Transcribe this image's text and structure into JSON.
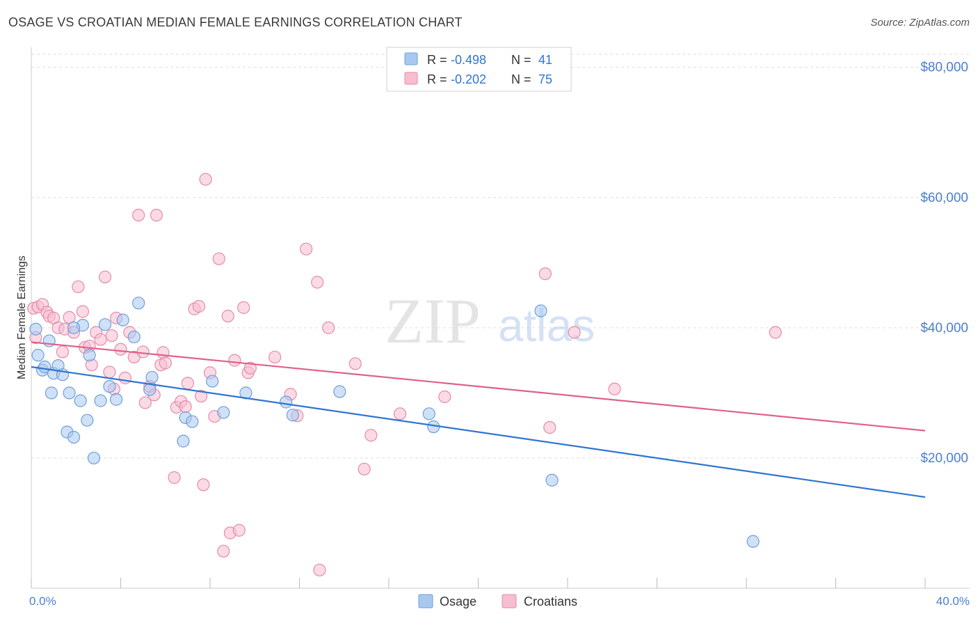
{
  "header": {
    "title": "OSAGE VS CROATIAN MEDIAN FEMALE EARNINGS CORRELATION CHART",
    "source": "Source: ZipAtlas.com"
  },
  "watermark": {
    "zip": "ZIP",
    "atlas": "atlas"
  },
  "colors": {
    "osage_fill": "#a9c8f0",
    "osage_stroke": "#6c9fdc",
    "osage_line": "#2f74d0",
    "croatian_fill": "#f6bed0",
    "croatian_stroke": "#e78aa8",
    "croatian_line": "#e0608a",
    "tick_label": "#4a7fcf",
    "grid": "#dddddd"
  },
  "legend": {
    "rows": [
      {
        "r_label": "R =",
        "r_value": "-0.498",
        "n_label": "N =",
        "n_value": "41"
      },
      {
        "r_label": "R =",
        "r_value": "-0.202",
        "n_label": "N =",
        "n_value": "75"
      }
    ]
  },
  "bottom_legend": {
    "osage": "Osage",
    "croatians": "Croatians"
  },
  "chart_data": {
    "type": "scatter",
    "title": "OSAGE VS CROATIAN MEDIAN FEMALE EARNINGS CORRELATION CHART",
    "xlabel": "",
    "ylabel": "Median Female Earnings",
    "xlim": [
      0,
      40
    ],
    "ylim": [
      0,
      82000
    ],
    "x_tick_labels": [
      "0.0%",
      "40.0%"
    ],
    "y_ticks": [
      20000,
      40000,
      60000,
      80000
    ],
    "y_tick_labels": [
      "$20,000",
      "$40,000",
      "$60,000",
      "$80,000"
    ],
    "grid": true,
    "series": [
      {
        "name": "Osage",
        "r": -0.498,
        "n": 41,
        "trend": {
          "x": [
            0,
            40
          ],
          "y": [
            34000,
            14000
          ]
        },
        "points": [
          [
            0.2,
            39800
          ],
          [
            0.3,
            35800
          ],
          [
            0.5,
            33500
          ],
          [
            0.6,
            34000
          ],
          [
            0.8,
            38000
          ],
          [
            0.9,
            30000
          ],
          [
            1.0,
            33000
          ],
          [
            1.2,
            34200
          ],
          [
            1.4,
            32800
          ],
          [
            1.6,
            24000
          ],
          [
            1.7,
            30000
          ],
          [
            1.9,
            23200
          ],
          [
            2.2,
            28800
          ],
          [
            2.3,
            40400
          ],
          [
            2.5,
            25800
          ],
          [
            2.6,
            35800
          ],
          [
            2.8,
            20000
          ],
          [
            3.1,
            28800
          ],
          [
            3.3,
            40500
          ],
          [
            3.5,
            31000
          ],
          [
            3.8,
            29000
          ],
          [
            4.1,
            41200
          ],
          [
            4.6,
            38600
          ],
          [
            4.8,
            43800
          ],
          [
            5.3,
            30500
          ],
          [
            5.4,
            32400
          ],
          [
            6.8,
            22600
          ],
          [
            6.9,
            26200
          ],
          [
            7.2,
            25600
          ],
          [
            8.1,
            31800
          ],
          [
            8.6,
            27000
          ],
          [
            9.6,
            30000
          ],
          [
            11.4,
            28600
          ],
          [
            11.7,
            26600
          ],
          [
            13.8,
            30200
          ],
          [
            17.8,
            26800
          ],
          [
            18.0,
            24800
          ],
          [
            22.8,
            42600
          ],
          [
            23.3,
            16600
          ],
          [
            32.3,
            7200
          ],
          [
            1.9,
            40000
          ]
        ]
      },
      {
        "name": "Croatians",
        "r": -0.202,
        "n": 75,
        "trend": {
          "x": [
            0,
            40
          ],
          "y": [
            37800,
            24200
          ]
        },
        "points": [
          [
            0.1,
            43000
          ],
          [
            0.2,
            38500
          ],
          [
            0.3,
            43200
          ],
          [
            0.5,
            43600
          ],
          [
            0.7,
            42400
          ],
          [
            0.8,
            41800
          ],
          [
            1.0,
            41500
          ],
          [
            1.2,
            40000
          ],
          [
            1.4,
            36300
          ],
          [
            1.5,
            39800
          ],
          [
            1.7,
            41600
          ],
          [
            1.9,
            39300
          ],
          [
            2.1,
            46300
          ],
          [
            2.3,
            42500
          ],
          [
            2.4,
            37000
          ],
          [
            2.6,
            37200
          ],
          [
            2.7,
            34300
          ],
          [
            2.9,
            39300
          ],
          [
            3.1,
            38200
          ],
          [
            3.3,
            47800
          ],
          [
            3.5,
            33200
          ],
          [
            3.6,
            38800
          ],
          [
            3.7,
            30600
          ],
          [
            3.8,
            41500
          ],
          [
            4.0,
            36700
          ],
          [
            4.2,
            32300
          ],
          [
            4.4,
            39300
          ],
          [
            4.6,
            35500
          ],
          [
            4.8,
            57300
          ],
          [
            5.0,
            36300
          ],
          [
            5.1,
            28500
          ],
          [
            5.3,
            31000
          ],
          [
            5.5,
            29700
          ],
          [
            5.6,
            57300
          ],
          [
            5.8,
            34300
          ],
          [
            5.9,
            36200
          ],
          [
            6.0,
            34600
          ],
          [
            6.4,
            17000
          ],
          [
            6.5,
            27800
          ],
          [
            6.7,
            28700
          ],
          [
            6.9,
            27900
          ],
          [
            7.0,
            31500
          ],
          [
            7.3,
            42900
          ],
          [
            7.5,
            43300
          ],
          [
            7.6,
            29500
          ],
          [
            7.7,
            15900
          ],
          [
            7.8,
            62800
          ],
          [
            8.0,
            33100
          ],
          [
            8.2,
            26400
          ],
          [
            8.4,
            50600
          ],
          [
            8.6,
            5700
          ],
          [
            8.8,
            41800
          ],
          [
            8.9,
            8500
          ],
          [
            9.1,
            35000
          ],
          [
            9.3,
            8900
          ],
          [
            9.5,
            43100
          ],
          [
            9.7,
            33100
          ],
          [
            9.8,
            33800
          ],
          [
            10.9,
            35500
          ],
          [
            11.6,
            29800
          ],
          [
            11.9,
            26500
          ],
          [
            12.3,
            52100
          ],
          [
            12.8,
            47000
          ],
          [
            12.9,
            2800
          ],
          [
            13.3,
            40000
          ],
          [
            14.5,
            34500
          ],
          [
            14.9,
            18300
          ],
          [
            15.2,
            23500
          ],
          [
            16.5,
            26800
          ],
          [
            18.5,
            29400
          ],
          [
            23.0,
            48300
          ],
          [
            23.2,
            24700
          ],
          [
            24.3,
            39300
          ],
          [
            26.1,
            30600
          ],
          [
            33.3,
            39300
          ]
        ]
      }
    ]
  }
}
